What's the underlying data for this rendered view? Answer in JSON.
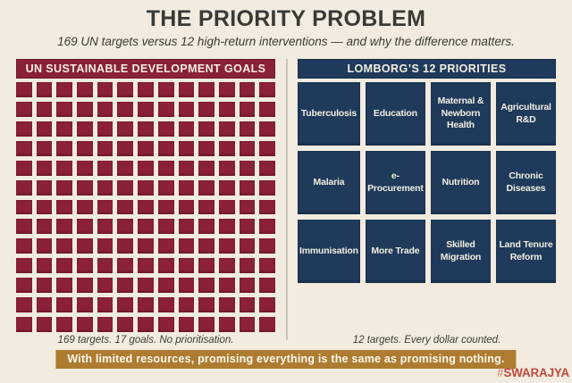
{
  "title": "THE PRIORITY PROBLEM",
  "subtitle": "169 UN targets versus 12 high-return interventions — and why the difference matters.",
  "left_panel": {
    "header": "UN SUSTAINABLE DEVELOPMENT GOALS",
    "caption": "169 targets. 17 goals. No prioritisation.",
    "grid": {
      "rows": 13,
      "cols": 13,
      "total_squares": 169
    }
  },
  "right_panel": {
    "header": "LOMBORG’S 12 PRIORITIES",
    "caption": "12 targets. Every dollar counted.",
    "priorities": [
      "Tuberculosis",
      "Education",
      "Maternal & Newborn Health",
      "Agricultural R&D",
      "Malaria",
      "e-Procurement",
      "Nutrition",
      "Chronic Diseases",
      "Immunisation",
      "More Trade",
      "Skilled Migration",
      "Land Tenure Reform"
    ]
  },
  "banner": "With limited resources, promising everything is the same as promising nothing.",
  "brand": {
    "hash": "#",
    "name": "SWARAJYA"
  },
  "colors": {
    "background": "#f1ecdf",
    "maroon": "#8a2137",
    "navy": "#1f3a5b",
    "banner_gold": "#ae7c31",
    "brand_red": "#c04a3c",
    "text_dark": "#3a3a35"
  }
}
